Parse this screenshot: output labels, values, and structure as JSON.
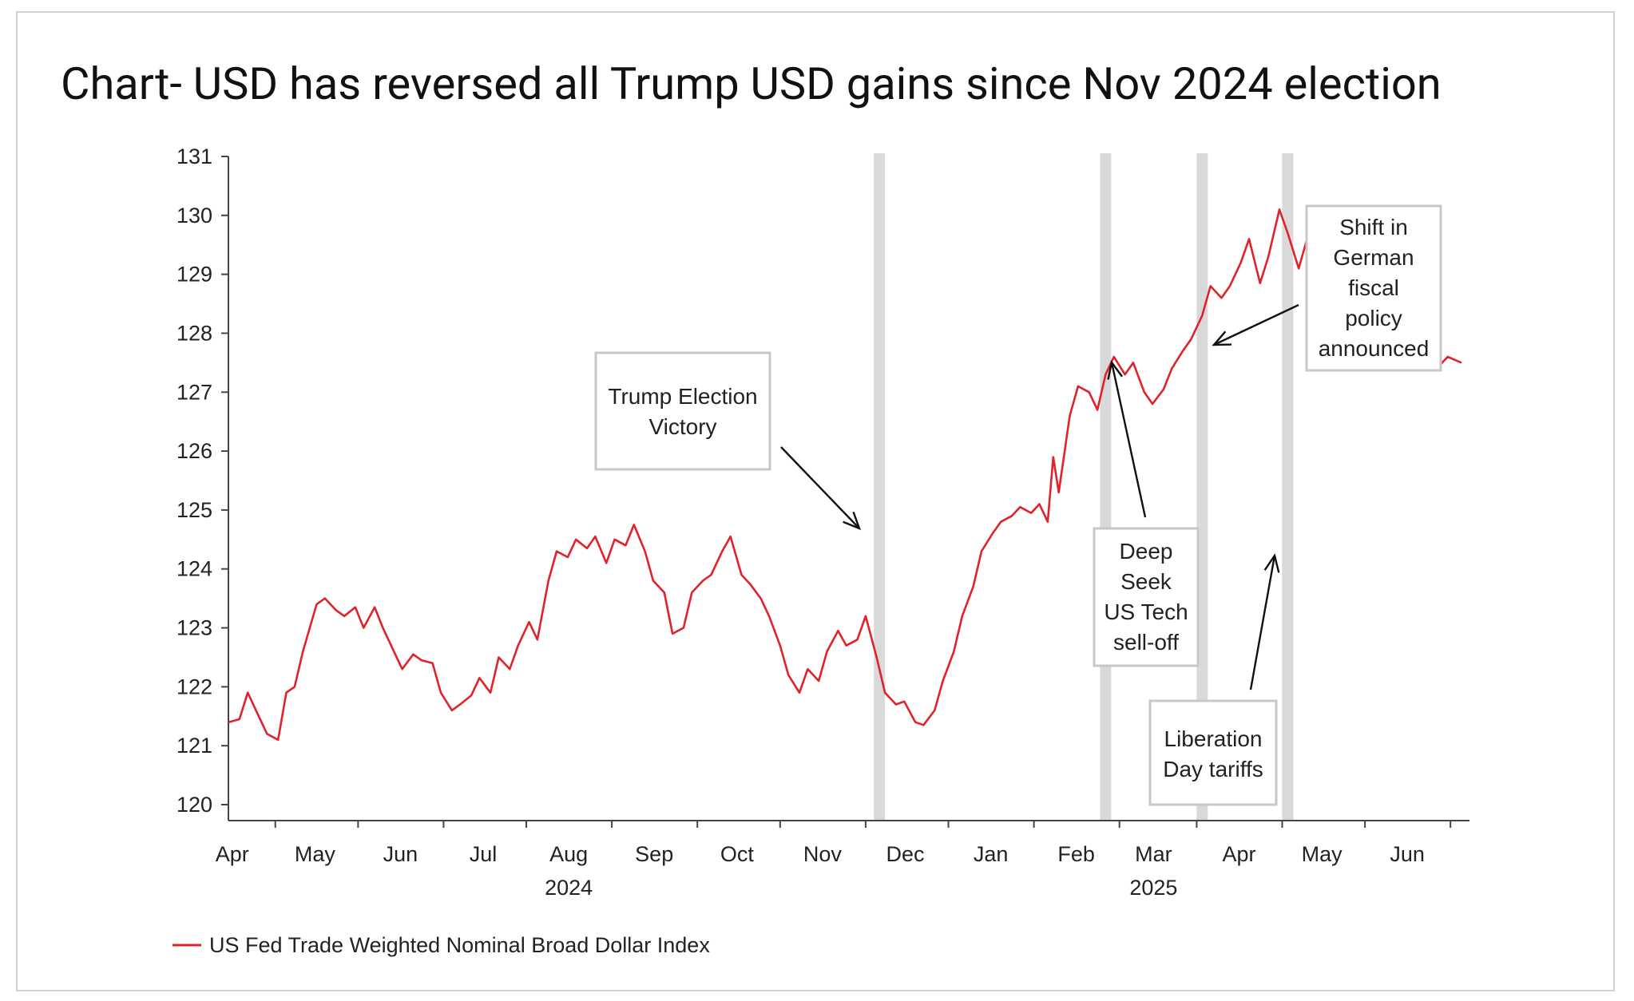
{
  "title": "Chart- USD has reversed all Trump USD gains since Nov 2024 election",
  "colors": {
    "line": "#e0222a",
    "event_bar": "#d9d9d9",
    "axis": "#444444",
    "frame": "#cfd3d8"
  },
  "chart_data": {
    "type": "line",
    "title": "Chart- USD has reversed all Trump USD gains since Nov 2024 election",
    "xlabel": "",
    "ylabel": "",
    "ylim": [
      120,
      131
    ],
    "yticks": [
      120,
      121,
      122,
      123,
      124,
      125,
      126,
      127,
      128,
      129,
      130,
      131
    ],
    "x_range": [
      "2024-03-15",
      "2025-06-05"
    ],
    "month_ticks": [
      "2024-04-01",
      "2024-05-01",
      "2024-06-01",
      "2024-07-01",
      "2024-08-01",
      "2024-09-01",
      "2024-10-01",
      "2024-11-01",
      "2024-12-01",
      "2025-01-01",
      "2025-02-01",
      "2025-03-01",
      "2025-04-01",
      "2025-05-01",
      "2025-06-01"
    ],
    "month_labels": [
      "Apr",
      "May",
      "Jun",
      "Jul",
      "Aug",
      "Sep",
      "Oct",
      "Nov",
      "Dec",
      "Jan",
      "Feb",
      "Mar",
      "Apr",
      "May",
      "Jun"
    ],
    "year_labels": [
      {
        "text": "2024",
        "at": "2024-08-01"
      },
      {
        "text": "2025",
        "at": "2025-03-01"
      }
    ],
    "legend": "bottom-left",
    "grid": false,
    "event_bars": [
      "2024-11-06",
      "2025-01-27",
      "2025-03-03",
      "2025-04-03"
    ],
    "annotations": [
      {
        "lines": [
          "Trump Election",
          "Victory"
        ]
      },
      {
        "lines": [
          "Deep",
          "Seek",
          "US Tech",
          "sell-off"
        ]
      },
      {
        "lines": [
          "Liberation",
          "Day tariffs"
        ]
      },
      {
        "lines": [
          "Shift in",
          "German",
          "fiscal",
          "policy",
          "announced"
        ]
      }
    ],
    "series": [
      {
        "name": "US Fed Trade Weighted Nominal Broad Dollar Index",
        "points": [
          [
            "2024-03-15",
            121.4
          ],
          [
            "2024-03-19",
            121.45
          ],
          [
            "2024-03-22",
            121.9
          ],
          [
            "2024-03-26",
            121.5
          ],
          [
            "2024-03-29",
            121.2
          ],
          [
            "2024-04-02",
            121.1
          ],
          [
            "2024-04-05",
            121.9
          ],
          [
            "2024-04-08",
            122.0
          ],
          [
            "2024-04-11",
            122.6
          ],
          [
            "2024-04-16",
            123.4
          ],
          [
            "2024-04-19",
            123.5
          ],
          [
            "2024-04-23",
            123.3
          ],
          [
            "2024-04-26",
            123.2
          ],
          [
            "2024-04-30",
            123.35
          ],
          [
            "2024-05-03",
            123.0
          ],
          [
            "2024-05-07",
            123.35
          ],
          [
            "2024-05-10",
            123.0
          ],
          [
            "2024-05-14",
            122.6
          ],
          [
            "2024-05-17",
            122.3
          ],
          [
            "2024-05-21",
            122.55
          ],
          [
            "2024-05-24",
            122.45
          ],
          [
            "2024-05-28",
            122.4
          ],
          [
            "2024-05-31",
            121.9
          ],
          [
            "2024-06-04",
            121.6
          ],
          [
            "2024-06-07",
            121.7
          ],
          [
            "2024-06-11",
            121.85
          ],
          [
            "2024-06-14",
            122.15
          ],
          [
            "2024-06-18",
            121.9
          ],
          [
            "2024-06-21",
            122.5
          ],
          [
            "2024-06-25",
            122.3
          ],
          [
            "2024-06-28",
            122.7
          ],
          [
            "2024-07-02",
            123.1
          ],
          [
            "2024-07-05",
            122.8
          ],
          [
            "2024-07-09",
            123.8
          ],
          [
            "2024-07-12",
            124.3
          ],
          [
            "2024-07-16",
            124.2
          ],
          [
            "2024-07-19",
            124.5
          ],
          [
            "2024-07-23",
            124.35
          ],
          [
            "2024-07-26",
            124.55
          ],
          [
            "2024-07-30",
            124.1
          ],
          [
            "2024-08-02",
            124.5
          ],
          [
            "2024-08-06",
            124.4
          ],
          [
            "2024-08-09",
            124.75
          ],
          [
            "2024-08-13",
            124.3
          ],
          [
            "2024-08-16",
            123.8
          ],
          [
            "2024-08-20",
            123.6
          ],
          [
            "2024-08-23",
            122.9
          ],
          [
            "2024-08-27",
            123.0
          ],
          [
            "2024-08-30",
            123.6
          ],
          [
            "2024-09-03",
            123.8
          ],
          [
            "2024-09-06",
            123.9
          ],
          [
            "2024-09-10",
            124.3
          ],
          [
            "2024-09-13",
            124.55
          ],
          [
            "2024-09-17",
            123.9
          ],
          [
            "2024-09-20",
            123.75
          ],
          [
            "2024-09-24",
            123.5
          ],
          [
            "2024-09-27",
            123.2
          ],
          [
            "2024-10-01",
            122.7
          ],
          [
            "2024-10-04",
            122.2
          ],
          [
            "2024-10-08",
            121.9
          ],
          [
            "2024-10-11",
            122.3
          ],
          [
            "2024-10-15",
            122.1
          ],
          [
            "2024-10-18",
            122.6
          ],
          [
            "2024-10-22",
            122.95
          ],
          [
            "2024-10-25",
            122.7
          ],
          [
            "2024-10-29",
            122.8
          ],
          [
            "2024-11-01",
            123.2
          ],
          [
            "2024-11-05",
            122.5
          ],
          [
            "2024-11-08",
            121.9
          ],
          [
            "2024-11-12",
            121.7
          ],
          [
            "2024-11-15",
            121.75
          ],
          [
            "2024-11-19",
            121.4
          ],
          [
            "2024-11-22",
            121.35
          ],
          [
            "2024-11-26",
            121.6
          ],
          [
            "2024-11-29",
            122.1
          ],
          [
            "2024-12-03",
            122.6
          ],
          [
            "2024-12-06",
            123.2
          ],
          [
            "2024-12-10",
            123.7
          ],
          [
            "2024-12-13",
            124.3
          ],
          [
            "2024-12-17",
            124.6
          ],
          [
            "2024-12-20",
            124.8
          ],
          [
            "2024-12-24",
            124.9
          ],
          [
            "2024-12-27",
            125.05
          ],
          [
            "2024-12-31",
            124.95
          ],
          [
            "2025-01-03",
            125.1
          ],
          [
            "2025-01-06",
            124.8
          ],
          [
            "2025-01-08",
            125.9
          ],
          [
            "2025-01-10",
            125.3
          ],
          [
            "2025-01-14",
            126.6
          ],
          [
            "2025-01-17",
            127.1
          ],
          [
            "2025-01-21",
            127.0
          ],
          [
            "2025-01-24",
            126.7
          ],
          [
            "2025-01-27",
            127.3
          ],
          [
            "2025-01-30",
            127.6
          ],
          [
            "2025-02-03",
            127.3
          ],
          [
            "2025-02-06",
            127.5
          ],
          [
            "2025-02-10",
            127.0
          ],
          [
            "2025-02-13",
            126.8
          ],
          [
            "2025-02-17",
            127.05
          ],
          [
            "2025-02-20",
            127.4
          ],
          [
            "2025-02-24",
            127.7
          ],
          [
            "2025-02-27",
            127.9
          ],
          [
            "2025-03-03",
            128.3
          ],
          [
            "2025-03-06",
            128.8
          ],
          [
            "2025-03-10",
            128.6
          ],
          [
            "2025-03-13",
            128.8
          ],
          [
            "2025-03-17",
            129.2
          ],
          [
            "2025-03-20",
            129.6
          ],
          [
            "2025-03-24",
            128.85
          ],
          [
            "2025-03-27",
            129.3
          ],
          [
            "2025-03-31",
            130.1
          ],
          [
            "2025-04-03",
            129.7
          ],
          [
            "2025-04-07",
            129.1
          ],
          [
            "2025-04-10",
            129.6
          ],
          [
            "2025-04-14",
            128.6
          ],
          [
            "2025-04-17",
            128.2
          ],
          [
            "2025-04-19",
            127.6
          ],
          [
            "2025-04-22",
            128.3
          ],
          [
            "2025-04-26",
            128.5
          ],
          [
            "2025-04-29",
            128.3
          ],
          [
            "2025-05-03",
            129.3
          ],
          [
            "2025-05-06",
            128.4
          ],
          [
            "2025-05-10",
            128.5
          ],
          [
            "2025-05-13",
            128.8
          ],
          [
            "2025-05-17",
            128.5
          ],
          [
            "2025-05-20",
            128.1
          ],
          [
            "2025-05-22",
            127.6
          ],
          [
            "2025-05-27",
            127.4
          ],
          [
            "2025-05-31",
            127.6
          ],
          [
            "2025-06-05",
            127.5
          ]
        ]
      }
    ]
  },
  "legend": {
    "label": "US Fed Trade Weighted Nominal Broad Dollar Index"
  }
}
